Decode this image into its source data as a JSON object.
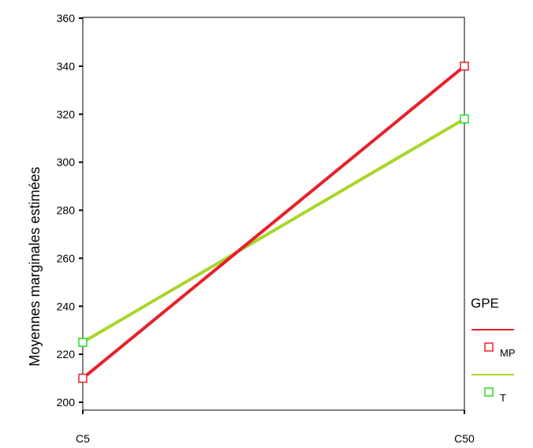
{
  "chart_data": {
    "type": "line",
    "title": "",
    "xlabel": "",
    "ylabel": "Moyennes marginales estimées",
    "categories": [
      "C5",
      "C50"
    ],
    "ylim": [
      200,
      360
    ],
    "yticks": [
      200,
      220,
      240,
      260,
      280,
      300,
      320,
      340,
      360
    ],
    "grid": false,
    "legend_title": "GPE",
    "legend_position": "right",
    "series": [
      {
        "name": "MP",
        "values": [
          210,
          340
        ],
        "color": "#e8202a",
        "marker": "open-square"
      },
      {
        "name": "T",
        "values": [
          225,
          318
        ],
        "color": "#a8d62a",
        "marker_color": "#22dd22",
        "marker": "open-square"
      }
    ]
  }
}
